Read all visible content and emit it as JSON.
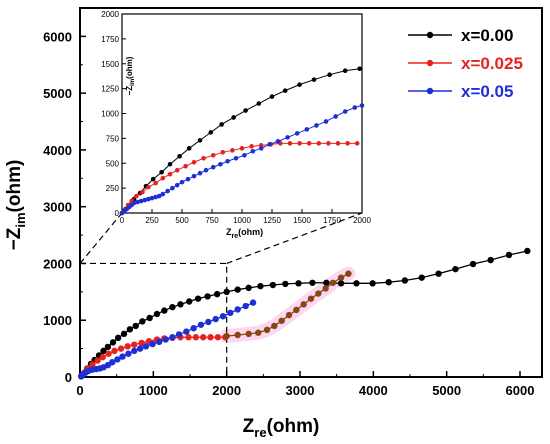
{
  "chart_data": [
    {
      "type": "line",
      "xlabel_main": "Z",
      "xlabel_sub": "re",
      "xlabel_unit": "(ohm)",
      "ylabel_prefix": "−Z",
      "ylabel_sub": "im",
      "ylabel_unit": "(ohm)",
      "xlim": [
        0,
        6300
      ],
      "ylim": [
        0,
        6500
      ],
      "xticks": [
        "0",
        "1000",
        "2000",
        "3000",
        "4000",
        "5000",
        "6000"
      ],
      "yticks": [
        "0",
        "1000",
        "2000",
        "3000",
        "4000",
        "5000",
        "6000"
      ],
      "xtick_values": [
        0,
        1000,
        2000,
        3000,
        4000,
        5000,
        6000
      ],
      "ytick_values": [
        0,
        1000,
        2000,
        3000,
        4000,
        5000,
        6000
      ],
      "legend_position": "top-right",
      "series": [
        {
          "name": "x=0.00",
          "color": "#000000",
          "points": [
            [
              20,
              15
            ],
            [
              50,
              60
            ],
            [
              100,
              150
            ],
            [
              150,
              230
            ],
            [
              200,
              300
            ],
            [
              260,
              380
            ],
            [
              320,
              460
            ],
            [
              380,
              530
            ],
            [
              450,
              610
            ],
            [
              520,
              690
            ],
            [
              600,
              760
            ],
            [
              680,
              840
            ],
            [
              760,
              900
            ],
            [
              850,
              980
            ],
            [
              950,
              1040
            ],
            [
              1050,
              1110
            ],
            [
              1150,
              1170
            ],
            [
              1260,
              1230
            ],
            [
              1370,
              1280
            ],
            [
              1490,
              1330
            ],
            [
              1610,
              1380
            ],
            [
              1740,
              1420
            ],
            [
              1870,
              1460
            ],
            [
              2000,
              1500
            ],
            [
              2150,
              1540
            ],
            [
              2300,
              1570
            ],
            [
              2460,
              1600
            ],
            [
              2630,
              1620
            ],
            [
              2800,
              1640
            ],
            [
              2980,
              1650
            ],
            [
              3170,
              1660
            ],
            [
              3360,
              1660
            ],
            [
              3560,
              1650
            ],
            [
              3770,
              1650
            ],
            [
              3990,
              1650
            ],
            [
              4210,
              1670
            ],
            [
              4430,
              1700
            ],
            [
              4660,
              1750
            ],
            [
              4890,
              1820
            ],
            [
              5120,
              1900
            ],
            [
              5360,
              1990
            ],
            [
              5600,
              2060
            ],
            [
              5850,
              2150
            ],
            [
              6100,
              2220
            ]
          ]
        },
        {
          "name": "x=0.025",
          "color": "#e8231f",
          "points": [
            [
              20,
              20
            ],
            [
              60,
              80
            ],
            [
              110,
              150
            ],
            [
              170,
              220
            ],
            [
              240,
              290
            ],
            [
              310,
              350
            ],
            [
              390,
              410
            ],
            [
              470,
              460
            ],
            [
              560,
              500
            ],
            [
              650,
              540
            ],
            [
              740,
              570
            ],
            [
              840,
              600
            ],
            [
              940,
              630
            ],
            [
              1050,
              660
            ],
            [
              1150,
              680
            ],
            [
              1260,
              690
            ],
            [
              1370,
              700
            ],
            [
              1480,
              700
            ],
            [
              1580,
              700
            ],
            [
              1680,
              700
            ],
            [
              1780,
              700
            ],
            [
              1880,
              700
            ],
            [
              1980,
              700
            ]
          ]
        },
        {
          "name": "x=0.05",
          "color": "#1f2fd6",
          "points": [
            [
              15,
              10
            ],
            [
              40,
              40
            ],
            [
              80,
              80
            ],
            [
              120,
              110
            ],
            [
              170,
              130
            ],
            [
              220,
              140
            ],
            [
              270,
              150
            ],
            [
              320,
              170
            ],
            [
              380,
              210
            ],
            [
              440,
              260
            ],
            [
              510,
              310
            ],
            [
              580,
              360
            ],
            [
              660,
              410
            ],
            [
              740,
              460
            ],
            [
              820,
              500
            ],
            [
              900,
              540
            ],
            [
              990,
              580
            ],
            [
              1080,
              620
            ],
            [
              1170,
              660
            ],
            [
              1260,
              700
            ],
            [
              1350,
              750
            ],
            [
              1450,
              800
            ],
            [
              1550,
              860
            ],
            [
              1650,
              920
            ],
            [
              1750,
              970
            ],
            [
              1850,
              1020
            ],
            [
              1950,
              1070
            ],
            [
              2050,
              1130
            ],
            [
              2150,
              1190
            ],
            [
              2260,
              1250
            ],
            [
              2360,
              1310
            ]
          ]
        },
        {
          "name": "",
          "color": "#8b4513",
          "points": [
            [
              2000,
              720
            ],
            [
              2150,
              740
            ],
            [
              2300,
              760
            ],
            [
              2430,
              780
            ],
            [
              2550,
              830
            ],
            [
              2650,
              900
            ],
            [
              2750,
              990
            ],
            [
              2850,
              1090
            ],
            [
              2950,
              1180
            ],
            [
              3050,
              1280
            ],
            [
              3150,
              1380
            ],
            [
              3250,
              1470
            ],
            [
              3350,
              1560
            ],
            [
              3450,
              1660
            ],
            [
              3560,
              1750
            ],
            [
              3660,
              1820
            ]
          ]
        }
      ]
    },
    {
      "type": "line",
      "inset": true,
      "xlabel_main": "Z",
      "xlabel_sub": "re",
      "xlabel_unit": "(ohm)",
      "ylabel_prefix": "−Z",
      "ylabel_sub": "im",
      "ylabel_unit": "(ohm)",
      "xlim": [
        0,
        2000
      ],
      "ylim": [
        0,
        2000
      ],
      "xticks": [
        "0",
        "250",
        "500",
        "750",
        "1000",
        "1250",
        "1500",
        "1750",
        "2000"
      ],
      "yticks": [
        "0",
        "250",
        "500",
        "750",
        "1000",
        "1250",
        "1500",
        "1750",
        "2000"
      ],
      "xtick_values": [
        0,
        250,
        500,
        750,
        1000,
        1250,
        1500,
        1750,
        2000
      ],
      "ytick_values": [
        0,
        250,
        500,
        750,
        1000,
        1250,
        1500,
        1750,
        2000
      ],
      "series": [
        {
          "name": "x=0.00",
          "color": "#000000",
          "points": [
            [
              0,
              0
            ],
            [
              30,
              40
            ],
            [
              60,
              80
            ],
            [
              100,
              140
            ],
            [
              150,
              200
            ],
            [
              200,
              270
            ],
            [
              260,
              340
            ],
            [
              330,
              410
            ],
            [
              400,
              490
            ],
            [
              480,
              570
            ],
            [
              560,
              650
            ],
            [
              650,
              730
            ],
            [
              740,
              810
            ],
            [
              830,
              890
            ],
            [
              930,
              960
            ],
            [
              1030,
              1030
            ],
            [
              1140,
              1100
            ],
            [
              1250,
              1170
            ],
            [
              1360,
              1230
            ],
            [
              1480,
              1290
            ],
            [
              1600,
              1340
            ],
            [
              1730,
              1390
            ],
            [
              1860,
              1430
            ],
            [
              1980,
              1450
            ]
          ]
        },
        {
          "name": "x=0.025",
          "color": "#e8231f",
          "points": [
            [
              0,
              0
            ],
            [
              20,
              30
            ],
            [
              50,
              80
            ],
            [
              80,
              120
            ],
            [
              120,
              170
            ],
            [
              170,
              210
            ],
            [
              220,
              260
            ],
            [
              280,
              300
            ],
            [
              340,
              350
            ],
            [
              400,
              390
            ],
            [
              460,
              430
            ],
            [
              530,
              470
            ],
            [
              600,
              510
            ],
            [
              680,
              550
            ],
            [
              760,
              580
            ],
            [
              840,
              610
            ],
            [
              920,
              630
            ],
            [
              1000,
              650
            ],
            [
              1080,
              670
            ],
            [
              1160,
              680
            ],
            [
              1240,
              690
            ],
            [
              1320,
              700
            ],
            [
              1400,
              700
            ],
            [
              1480,
              700
            ],
            [
              1560,
              700
            ],
            [
              1640,
              700
            ],
            [
              1720,
              700
            ],
            [
              1800,
              700
            ],
            [
              1880,
              700
            ],
            [
              1960,
              700
            ]
          ]
        },
        {
          "name": "x=0.05",
          "color": "#1f2fd6",
          "points": [
            [
              0,
              0
            ],
            [
              20,
              20
            ],
            [
              40,
              40
            ],
            [
              60,
              60
            ],
            [
              80,
              80
            ],
            [
              100,
              100
            ],
            [
              130,
              110
            ],
            [
              160,
              120
            ],
            [
              190,
              130
            ],
            [
              220,
              140
            ],
            [
              250,
              150
            ],
            [
              280,
              160
            ],
            [
              310,
              170
            ],
            [
              340,
              190
            ],
            [
              380,
              220
            ],
            [
              420,
              250
            ],
            [
              460,
              280
            ],
            [
              500,
              310
            ],
            [
              550,
              340
            ],
            [
              600,
              370
            ],
            [
              650,
              400
            ],
            [
              700,
              430
            ],
            [
              760,
              460
            ],
            [
              820,
              490
            ],
            [
              880,
              520
            ],
            [
              950,
              550
            ],
            [
              1020,
              580
            ],
            [
              1090,
              620
            ],
            [
              1160,
              650
            ],
            [
              1230,
              690
            ],
            [
              1300,
              720
            ],
            [
              1380,
              760
            ],
            [
              1460,
              800
            ],
            [
              1540,
              840
            ],
            [
              1620,
              880
            ],
            [
              1700,
              920
            ],
            [
              1780,
              970
            ],
            [
              1860,
              1020
            ],
            [
              1940,
              1060
            ],
            [
              2000,
              1080
            ]
          ]
        }
      ]
    }
  ]
}
